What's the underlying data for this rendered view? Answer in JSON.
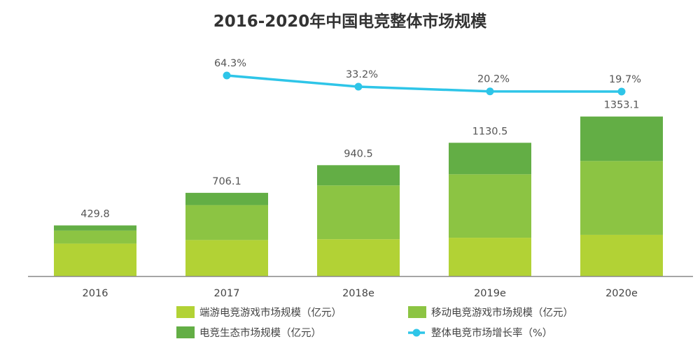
{
  "chart_data": {
    "type": "bar",
    "stacked": true,
    "title": "2016-2020年中国电竞整体市场规模",
    "categories": [
      "2016",
      "2017",
      "2018e",
      "2019e",
      "2020e"
    ],
    "series": [
      {
        "name": "端游电竞游戏市场规模（亿元）",
        "type": "bar",
        "color": "#b2d235",
        "values": [
          276,
          306,
          313,
          325.5,
          350
        ]
      },
      {
        "name": "移动电竞游戏市场规模（亿元）",
        "type": "bar",
        "color": "#8cc443",
        "values": [
          110,
          296,
          456,
          538,
          626
        ]
      },
      {
        "name": "电竞生态市场规模（亿元）",
        "type": "bar",
        "color": "#63ae45",
        "values": [
          43.8,
          104.1,
          171.5,
          267,
          377.1
        ]
      },
      {
        "name": "整体电竞市场增长率（%）",
        "type": "line",
        "color": "#2ec5e8",
        "values": [
          null,
          64.3,
          33.2,
          20.2,
          19.7
        ]
      }
    ],
    "totals": [
      "429.8",
      "706.1",
      "940.5",
      "1130.5",
      "1353.1"
    ],
    "rate_labels": [
      "",
      "64.3%",
      "33.2%",
      "20.2%",
      "19.7%"
    ],
    "ylim": [
      0,
      1353.1
    ],
    "grid": false,
    "legend": "bottom"
  }
}
